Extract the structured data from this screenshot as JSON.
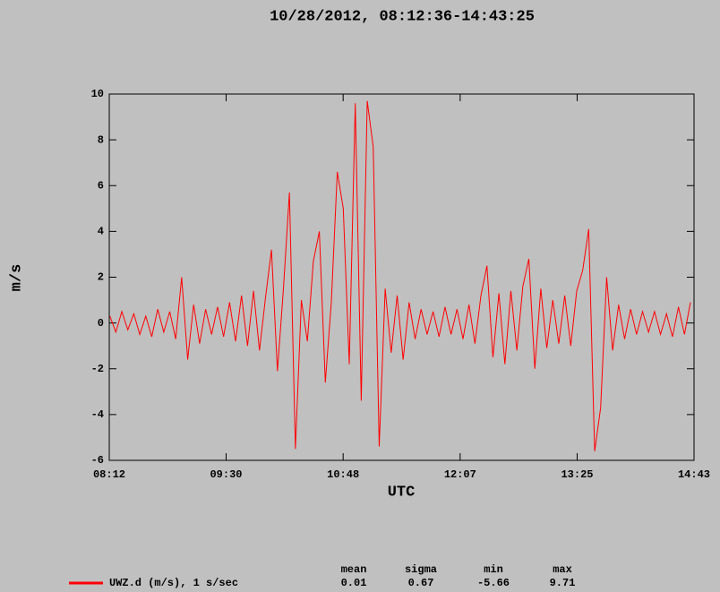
{
  "chart_data": {
    "type": "line",
    "title": "10/28/2012, 08:12:36-14:43:25",
    "x_label": "UTC",
    "y_label": "m/s",
    "xlim": [
      492.6,
      883.4
    ],
    "xticks": [
      {
        "value": 492.6,
        "label": "08:12"
      },
      {
        "value": 570.7,
        "label": "09:30"
      },
      {
        "value": 648.9,
        "label": "10:48"
      },
      {
        "value": 727.1,
        "label": "12:07"
      },
      {
        "value": 805.3,
        "label": "13:25"
      },
      {
        "value": 883.4,
        "label": "14:43"
      }
    ],
    "ylim": [
      -6,
      10
    ],
    "yticks": [
      -6,
      -4,
      -2,
      0,
      2,
      4,
      6,
      8,
      10
    ],
    "grid": false,
    "series": [
      {
        "name": "UWZ.d (m/s), 1 s/sec",
        "color": "#ff0000",
        "x": [
          493,
          497,
          501,
          505,
          509,
          513,
          517,
          521,
          525,
          529,
          533,
          537,
          541,
          545,
          549,
          553,
          557,
          561,
          565,
          569,
          573,
          577,
          581,
          585,
          589,
          593,
          597,
          601,
          605,
          609,
          613,
          617,
          621,
          625,
          629,
          633,
          637,
          641,
          645,
          649,
          653,
          657,
          661,
          665,
          669,
          673,
          677,
          681,
          685,
          689,
          693,
          697,
          701,
          705,
          709,
          713,
          717,
          721,
          725,
          729,
          733,
          737,
          741,
          745,
          749,
          753,
          757,
          761,
          765,
          769,
          773,
          777,
          781,
          785,
          789,
          793,
          797,
          801,
          805,
          809,
          813,
          817,
          821,
          825,
          829,
          833,
          837,
          841,
          845,
          849,
          853,
          857,
          861,
          865,
          869,
          873,
          877,
          881
        ],
        "values": [
          0.3,
          -0.4,
          0.5,
          -0.3,
          0.4,
          -0.5,
          0.3,
          -0.6,
          0.6,
          -0.4,
          0.5,
          -0.7,
          2.0,
          -1.6,
          0.8,
          -0.9,
          0.6,
          -0.5,
          0.7,
          -0.6,
          0.9,
          -0.8,
          1.2,
          -1.0,
          1.4,
          -1.2,
          1.1,
          3.2,
          -2.1,
          1.5,
          5.7,
          -5.5,
          1.0,
          -0.8,
          2.7,
          4.0,
          -2.6,
          0.9,
          6.6,
          5.0,
          -1.8,
          9.6,
          -3.4,
          9.7,
          7.7,
          -5.4,
          1.5,
          -1.3,
          1.2,
          -1.6,
          0.9,
          -0.7,
          0.6,
          -0.5,
          0.5,
          -0.6,
          0.7,
          -0.5,
          0.6,
          -0.7,
          0.8,
          -0.9,
          1.2,
          2.5,
          -1.5,
          1.3,
          -1.8,
          1.4,
          -1.2,
          1.6,
          2.8,
          -2.0,
          1.5,
          -1.1,
          1.0,
          -0.9,
          1.2,
          -1.0,
          1.4,
          2.3,
          4.1,
          -5.6,
          -3.7,
          2.0,
          -1.2,
          0.8,
          -0.7,
          0.6,
          -0.5,
          0.5,
          -0.4,
          0.5,
          -0.5,
          0.4,
          -0.6,
          0.7,
          -0.5,
          0.9
        ]
      }
    ],
    "stats": [
      {
        "label": "mean",
        "value": "0.01"
      },
      {
        "label": "sigma",
        "value": "0.67"
      },
      {
        "label": "min",
        "value": "-5.66"
      },
      {
        "label": "max",
        "value": "9.71"
      }
    ]
  }
}
